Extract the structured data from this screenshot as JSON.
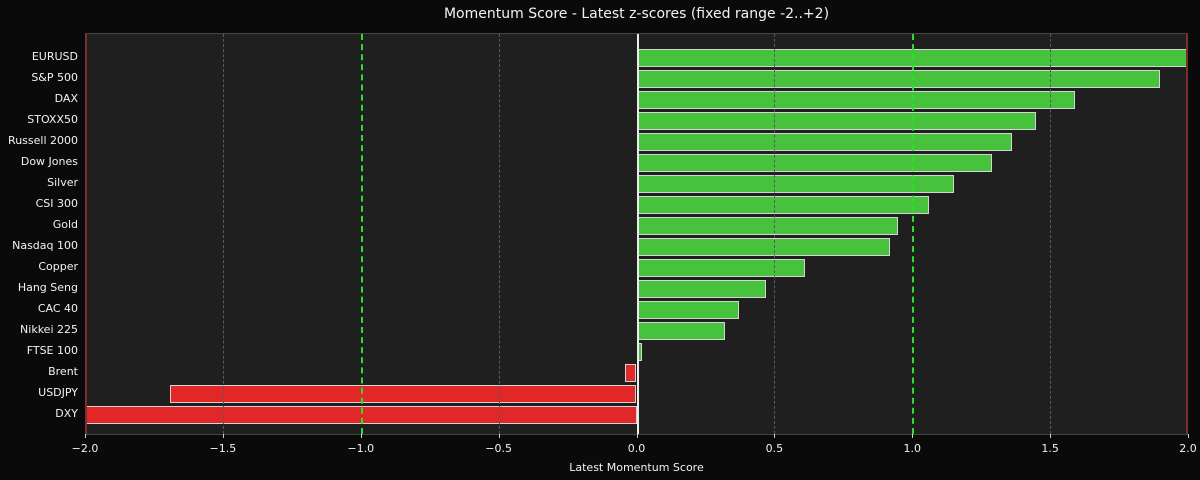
{
  "chart_data": {
    "type": "bar",
    "orientation": "horizontal",
    "title": "Momentum Score - Latest z-scores (fixed range -2..+2)",
    "xlabel": "Latest Momentum Score",
    "xlim": [
      -2,
      2
    ],
    "grid": "vertical dashed gridlines every 0.5",
    "categories": [
      "EURUSD",
      "S&P 500",
      "DAX",
      "STOXX50",
      "Russell 2000",
      "Dow Jones",
      "Silver",
      "CSI 300",
      "Gold",
      "Nasdaq 100",
      "Copper",
      "Hang Seng",
      "CAC 40",
      "Nikkei 225",
      "FTSE 100",
      "Brent",
      "USDJPY",
      "DXY"
    ],
    "values": [
      2.0,
      1.9,
      1.59,
      1.45,
      1.36,
      1.29,
      1.15,
      1.06,
      0.95,
      0.92,
      0.61,
      0.47,
      0.37,
      0.32,
      0.02,
      -0.04,
      -1.69,
      -2.0
    ],
    "xticks": [
      {
        "value": -2.0,
        "label": "−2.0"
      },
      {
        "value": -1.5,
        "label": "−1.5"
      },
      {
        "value": -1.0,
        "label": "−1.0"
      },
      {
        "value": -0.5,
        "label": "−0.5"
      },
      {
        "value": 0.0,
        "label": "0.0"
      },
      {
        "value": 0.5,
        "label": "0.5"
      },
      {
        "value": 1.0,
        "label": "1.0"
      },
      {
        "value": 1.5,
        "label": "1.5"
      },
      {
        "value": 2.0,
        "label": "2.0"
      }
    ],
    "reference_lines": [
      {
        "x": -2.0,
        "kind": "boundary"
      },
      {
        "x": -1.5,
        "kind": "grid"
      },
      {
        "x": -1.0,
        "kind": "threshold"
      },
      {
        "x": -0.5,
        "kind": "grid"
      },
      {
        "x": 0.0,
        "kind": "zero"
      },
      {
        "x": 0.5,
        "kind": "grid"
      },
      {
        "x": 1.0,
        "kind": "threshold"
      },
      {
        "x": 1.5,
        "kind": "grid"
      }
    ],
    "colors": {
      "positive_bar": "#46c23d",
      "negative_bar": "#e12727",
      "bar_edge": "#d4d4d4",
      "threshold_line": "#2ede2e",
      "grid_line": "#5a5a5a",
      "zero_line": "#ececec",
      "boundary_line": "#7a2e2e",
      "plot_background": "#1f1f1f",
      "figure_background": "#0a0a0a",
      "text": "#f2f2f2"
    },
    "legend": "none"
  }
}
